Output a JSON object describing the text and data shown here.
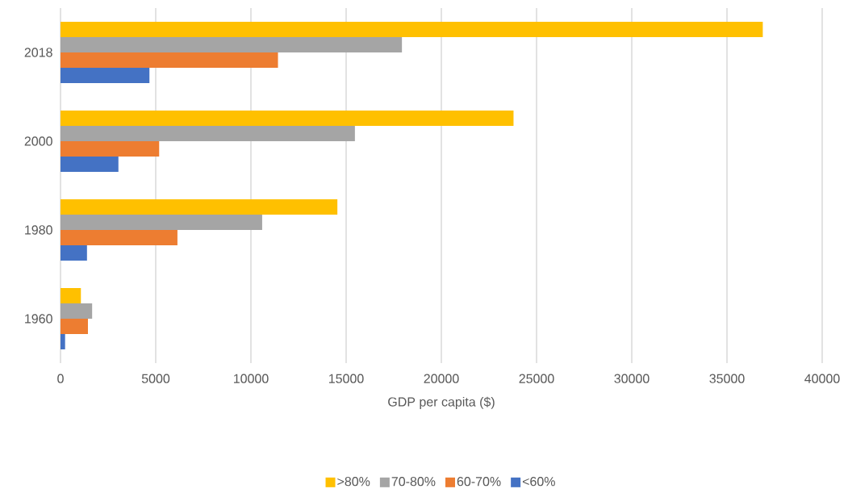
{
  "chart_data": {
    "type": "bar",
    "orientation": "horizontal",
    "categories": [
      "2018",
      "2000",
      "1980",
      "1960"
    ],
    "series": [
      {
        "name": ">80%",
        "color": "#ffc000",
        "values": [
          36880,
          23790,
          14540,
          1070
        ]
      },
      {
        "name": "70-80%",
        "color": "#a5a5a5",
        "values": [
          17930,
          15460,
          10590,
          1660
        ]
      },
      {
        "name": "60-70%",
        "color": "#ed7d31",
        "values": [
          11420,
          5180,
          6140,
          1440
        ]
      },
      {
        "name": "<60%",
        "color": "#4472c4",
        "values": [
          4670,
          3040,
          1390,
          240
        ]
      }
    ],
    "xlabel": "GDP per capita ($)",
    "xlim": [
      0,
      40000
    ],
    "xticks": [
      0,
      5000,
      10000,
      15000,
      20000,
      25000,
      30000,
      35000,
      40000
    ],
    "grid": "x",
    "legend": "bottom"
  }
}
